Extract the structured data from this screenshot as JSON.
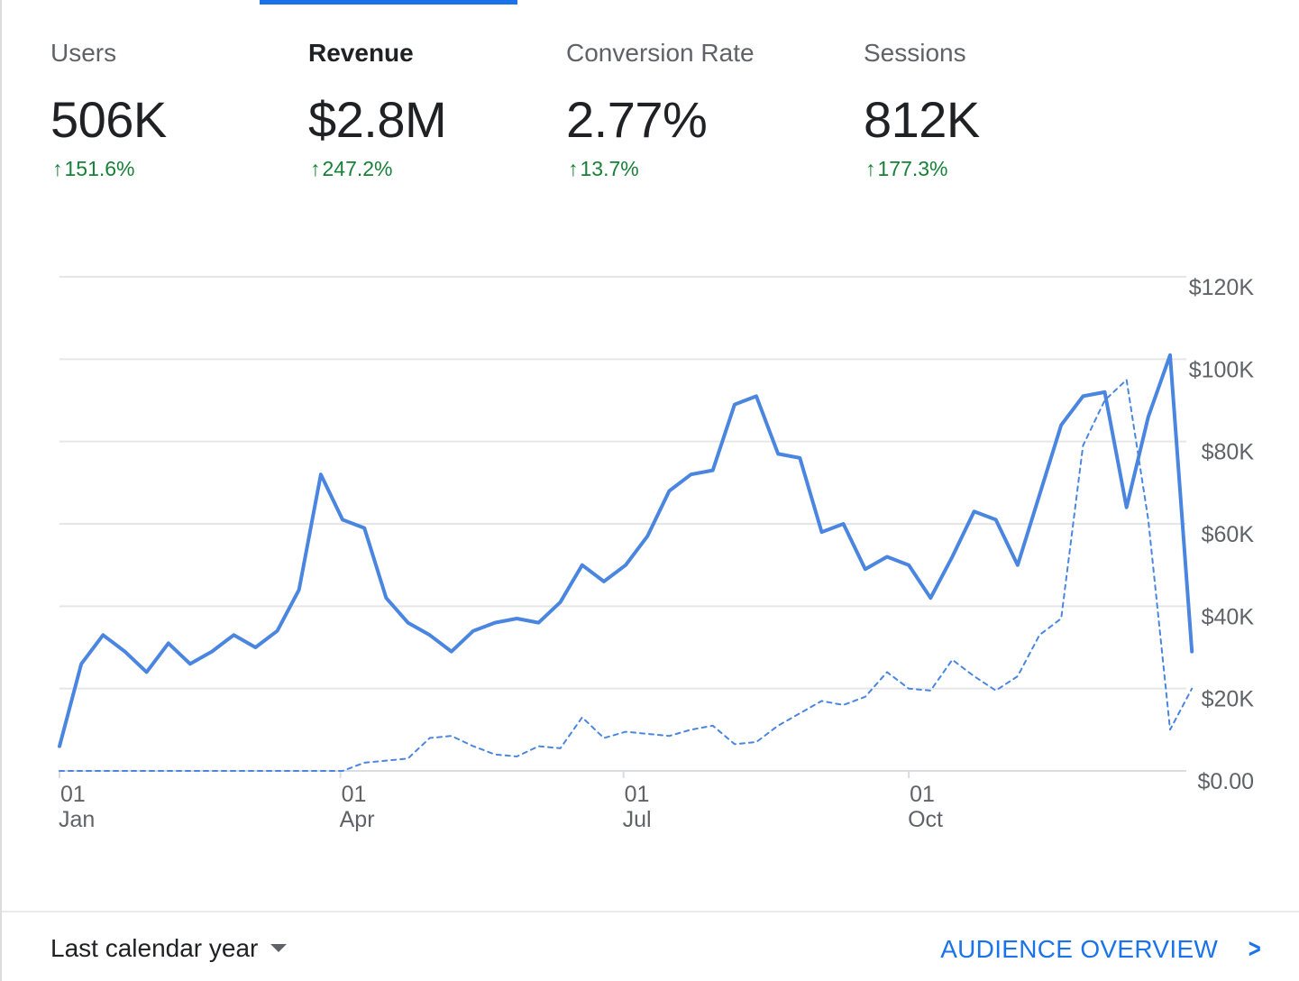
{
  "metrics": [
    {
      "label": "Users",
      "value": "506K",
      "change": "151.6%",
      "active": false
    },
    {
      "label": "Revenue",
      "value": "$2.8M",
      "change": "247.2%",
      "active": true
    },
    {
      "label": "Conversion Rate",
      "value": "2.77%",
      "change": "13.7%",
      "active": false
    },
    {
      "label": "Sessions",
      "value": "812K",
      "change": "177.3%",
      "active": false
    }
  ],
  "icons": {
    "change_arrow": "up-arrow-icon",
    "range_caret": "caret-down-icon",
    "link_chevron": "chevron-right-icon"
  },
  "colors": {
    "accent": "#1a73e8",
    "series": "#4a86e0",
    "positive": "#188038",
    "muted_text": "#5f6368"
  },
  "chart_data": {
    "type": "line",
    "y_tick_labels": [
      "$0.00",
      "$20K",
      "$40K",
      "$60K",
      "$80K",
      "$100K",
      "$120K"
    ],
    "y_ticks": [
      0,
      20000,
      40000,
      60000,
      80000,
      100000,
      120000
    ],
    "ylim": [
      0,
      120000
    ],
    "x_ticks": [
      {
        "day": "01",
        "month": "Jan",
        "week": 0
      },
      {
        "day": "01",
        "month": "Apr",
        "week": 12.9
      },
      {
        "day": "01",
        "month": "Jul",
        "week": 25.9
      },
      {
        "day": "01",
        "month": "Oct",
        "week": 39
      }
    ],
    "x_unit": "week",
    "xlim": [
      0,
      51
    ],
    "grid": true,
    "series": [
      {
        "style": "solid",
        "values": [
          6000,
          26000,
          33000,
          29000,
          24000,
          31000,
          26000,
          29000,
          33000,
          30000,
          34000,
          44000,
          72000,
          61000,
          59000,
          42000,
          36000,
          33000,
          29000,
          34000,
          36000,
          37000,
          36000,
          41000,
          50000,
          46000,
          50000,
          57000,
          68000,
          72000,
          73000,
          89000,
          91000,
          77000,
          76000,
          58000,
          60000,
          49000,
          52000,
          50000,
          42000,
          52000,
          63000,
          61000,
          50000,
          67000,
          84000,
          91000,
          92000,
          64000,
          86000,
          101000,
          29000
        ]
      },
      {
        "style": "dashed",
        "values": [
          0,
          0,
          0,
          0,
          0,
          0,
          0,
          0,
          0,
          0,
          0,
          0,
          0,
          0,
          2000,
          2500,
          3000,
          8000,
          8500,
          6000,
          4000,
          3500,
          6000,
          5500,
          13000,
          8000,
          9500,
          9000,
          8500,
          10000,
          11000,
          6500,
          7000,
          11000,
          14000,
          17000,
          16000,
          18000,
          24000,
          20000,
          19500,
          27000,
          23000,
          19500,
          23000,
          33000,
          37000,
          79000,
          90000,
          95000,
          61000,
          10000,
          20000
        ]
      }
    ]
  },
  "footer": {
    "range_label": "Last calendar year",
    "link_label": "AUDIENCE OVERVIEW"
  }
}
